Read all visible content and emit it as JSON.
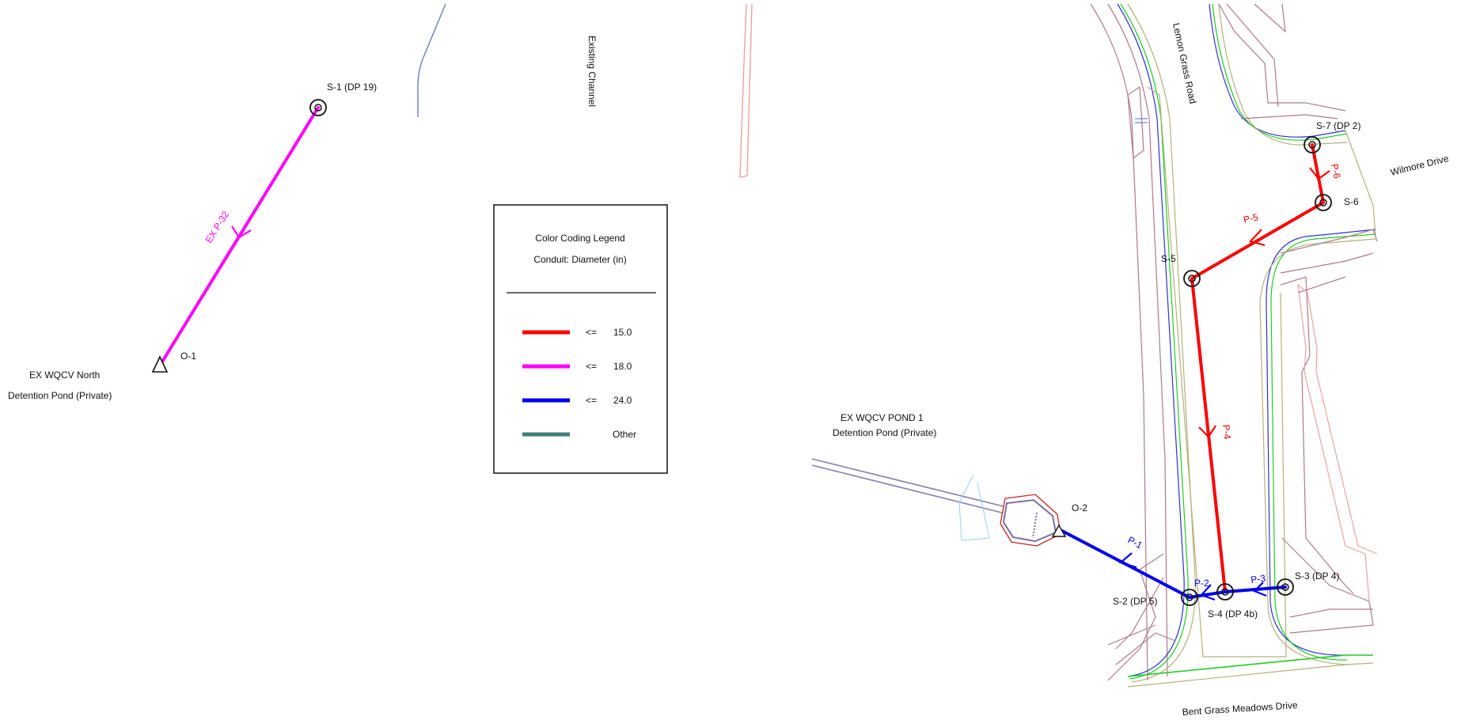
{
  "colors": {
    "small": "#ff0000",
    "medium": "#ff00ff",
    "large": "#0000ee",
    "other": "#3f7f78",
    "road_outline": "#b07a88",
    "road_green": "#22cc22",
    "road_blue": "#3030d0",
    "curb": "#b5b07a",
    "channel": "#6f84c4",
    "pink": "#f0a0a0",
    "pond_outline": "#8a7fb0"
  },
  "legend": {
    "title": "Color Coding Legend",
    "subtitle": "Conduit: Diameter (in)",
    "items": [
      {
        "op": "<=",
        "value": "15.0",
        "color": "#ff0000"
      },
      {
        "op": "<=",
        "value": "18.0",
        "color": "#ff00ff"
      },
      {
        "op": "<=",
        "value": "24.0",
        "color": "#0000ee"
      },
      {
        "op": "",
        "value": "Other",
        "color": "#3f7f78"
      }
    ]
  },
  "nodes": {
    "s1": "S-1 (DP 19)",
    "o1": "O-1",
    "s2": "S-2 (DP 5)",
    "s3": "S-3 (DP 4)",
    "s4": "S-4 (DP 4b)",
    "s5": "S-5",
    "s6": "S-6",
    "s7": "S-7 (DP 2)",
    "o2": "O-2"
  },
  "pipes": {
    "exp32": "EX P-32",
    "p1": "P-1",
    "p2": "P-2",
    "p3": "P-3",
    "p4": "P-4",
    "p5": "P-5",
    "p6": "P-6"
  },
  "areas": {
    "north_pond_1": "EX WQCV North",
    "north_pond_2": "Detention Pond (Private)",
    "pond1_1": "EX WQCV POND 1",
    "pond1_2": "Detention Pond (Private)",
    "channel": "Existing Channel"
  },
  "streets": {
    "lemon": "Lemon Grass Road",
    "wilmore": "Wilmore Drive",
    "bent": "Bent Grass Meadows Drive"
  }
}
